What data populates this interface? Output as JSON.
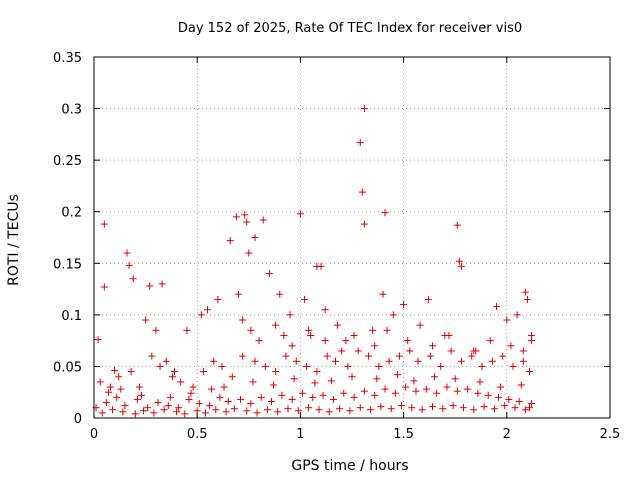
{
  "chart_data": {
    "type": "scatter",
    "title": "Day 152 of 2025, Rate Of TEC Index for receiver vis0",
    "xlabel": "GPS time / hours",
    "ylabel": "ROTI / TECUs",
    "xlim": [
      0,
      2.5
    ],
    "ylim": [
      0,
      0.35
    ],
    "grid": true,
    "marker": "+",
    "color": "#e00000",
    "x_ticks": [
      {
        "value": 0,
        "label": "0"
      },
      {
        "value": 0.5,
        "label": "0.5"
      },
      {
        "value": 1,
        "label": "1"
      },
      {
        "value": 1.5,
        "label": "1.5"
      },
      {
        "value": 2,
        "label": "2"
      },
      {
        "value": 2.5,
        "label": "2.5"
      }
    ],
    "y_ticks": [
      {
        "value": 0,
        "label": "0"
      },
      {
        "value": 0.05,
        "label": "0.05"
      },
      {
        "value": 0.1,
        "label": "0.1"
      },
      {
        "value": 0.15,
        "label": "0.15"
      },
      {
        "value": 0.2,
        "label": "0.2"
      },
      {
        "value": 0.25,
        "label": "0.25"
      },
      {
        "value": 0.3,
        "label": "0.3"
      },
      {
        "value": 0.35,
        "label": "0.35"
      }
    ],
    "series": [
      {
        "name": "ROTI",
        "x": [
          0.05,
          0.27,
          0.33,
          0.69,
          0.73,
          0.74,
          0.78,
          0.82,
          1.0,
          1.08,
          1.1,
          1.29,
          1.3,
          1.31,
          1.31,
          1.41,
          1.76,
          1.77,
          1.78,
          2.09,
          0.02,
          0.05,
          0.1,
          0.16,
          0.17,
          0.19,
          0.25,
          0.3,
          0.35,
          0.39,
          0.45,
          0.52,
          0.55,
          0.6,
          0.66,
          0.7,
          0.75,
          0.85,
          0.9,
          0.95,
          1.02,
          1.05,
          1.12,
          1.18,
          1.22,
          1.35,
          1.4,
          1.45,
          1.5,
          1.58,
          1.62,
          1.7,
          1.85,
          1.95,
          2.0,
          2.05,
          2.1,
          2.12,
          0.03,
          0.08,
          0.12,
          0.18,
          0.22,
          0.28,
          0.32,
          0.38,
          0.42,
          0.48,
          0.53,
          0.58,
          0.62,
          0.67,
          0.72,
          0.78,
          0.83,
          0.88,
          0.93,
          0.98,
          1.03,
          1.08,
          1.13,
          1.17,
          1.23,
          1.28,
          1.33,
          1.38,
          1.43,
          1.48,
          1.53,
          1.57,
          1.63,
          1.68,
          1.73,
          1.78,
          1.83,
          1.88,
          1.93,
          1.98,
          2.03,
          2.08,
          2.11,
          0.01,
          0.06,
          0.11,
          0.15,
          0.21,
          0.26,
          0.31,
          0.36,
          0.41,
          0.46,
          0.51,
          0.56,
          0.61,
          0.65,
          0.71,
          0.76,
          0.81,
          0.86,
          0.91,
          0.96,
          1.01,
          1.06,
          1.11,
          1.16,
          1.21,
          1.26,
          1.31,
          1.36,
          1.41,
          1.46,
          1.51,
          1.56,
          1.61,
          1.66,
          1.71,
          1.76,
          1.81,
          1.86,
          1.91,
          1.96,
          2.01,
          2.06,
          2.12,
          0.04,
          0.09,
          0.14,
          0.2,
          0.24,
          0.29,
          0.34,
          0.4,
          0.44,
          0.5,
          0.54,
          0.59,
          0.64,
          0.68,
          0.74,
          0.79,
          0.84,
          0.89,
          0.94,
          0.99,
          1.04,
          1.09,
          1.14,
          1.19,
          1.24,
          1.29,
          1.34,
          1.39,
          1.44,
          1.49,
          1.54,
          1.59,
          1.64,
          1.69,
          1.74,
          1.79,
          1.84,
          1.89,
          1.94,
          1.99,
          2.04,
          2.09,
          2.11,
          0.07,
          0.13,
          0.23,
          0.37,
          0.47,
          0.57,
          0.63,
          0.77,
          0.87,
          0.97,
          1.07,
          1.15,
          1.25,
          1.37,
          1.47,
          1.55,
          1.65,
          1.75,
          1.87,
          1.97,
          2.07,
          0.72,
          0.76,
          0.8,
          0.88,
          0.92,
          0.96,
          1.04,
          1.12,
          1.2,
          1.26,
          1.36,
          1.42,
          1.52,
          1.64,
          1.72,
          1.84,
          1.92,
          2.02,
          2.08,
          2.12
        ],
        "y": [
          0.188,
          0.128,
          0.13,
          0.195,
          0.197,
          0.19,
          0.175,
          0.192,
          0.198,
          0.147,
          0.147,
          0.267,
          0.219,
          0.3,
          0.188,
          0.199,
          0.187,
          0.152,
          0.147,
          0.122,
          0.076,
          0.127,
          0.046,
          0.16,
          0.148,
          0.135,
          0.095,
          0.085,
          0.055,
          0.045,
          0.085,
          0.1,
          0.105,
          0.115,
          0.172,
          0.12,
          0.16,
          0.14,
          0.12,
          0.1,
          0.115,
          0.08,
          0.105,
          0.09,
          0.075,
          0.085,
          0.12,
          0.1,
          0.11,
          0.09,
          0.115,
          0.08,
          0.065,
          0.108,
          0.095,
          0.1,
          0.115,
          0.075,
          0.035,
          0.03,
          0.04,
          0.045,
          0.03,
          0.06,
          0.05,
          0.04,
          0.035,
          0.03,
          0.045,
          0.055,
          0.05,
          0.04,
          0.06,
          0.055,
          0.05,
          0.045,
          0.06,
          0.055,
          0.05,
          0.045,
          0.06,
          0.055,
          0.05,
          0.065,
          0.06,
          0.05,
          0.055,
          0.06,
          0.065,
          0.055,
          0.06,
          0.05,
          0.065,
          0.055,
          0.06,
          0.05,
          0.055,
          0.06,
          0.05,
          0.055,
          0.045,
          0.01,
          0.015,
          0.02,
          0.012,
          0.018,
          0.01,
          0.015,
          0.012,
          0.01,
          0.018,
          0.014,
          0.012,
          0.02,
          0.016,
          0.018,
          0.014,
          0.02,
          0.016,
          0.022,
          0.018,
          0.024,
          0.02,
          0.022,
          0.018,
          0.024,
          0.02,
          0.026,
          0.022,
          0.028,
          0.024,
          0.03,
          0.026,
          0.028,
          0.024,
          0.03,
          0.026,
          0.028,
          0.024,
          0.022,
          0.02,
          0.018,
          0.016,
          0.014,
          0.005,
          0.008,
          0.006,
          0.004,
          0.007,
          0.005,
          0.008,
          0.006,
          0.004,
          0.007,
          0.005,
          0.008,
          0.006,
          0.009,
          0.007,
          0.005,
          0.008,
          0.006,
          0.009,
          0.007,
          0.01,
          0.008,
          0.006,
          0.009,
          0.007,
          0.01,
          0.008,
          0.011,
          0.009,
          0.012,
          0.01,
          0.008,
          0.011,
          0.009,
          0.012,
          0.01,
          0.008,
          0.011,
          0.009,
          0.012,
          0.01,
          0.008,
          0.01,
          0.025,
          0.028,
          0.022,
          0.02,
          0.024,
          0.028,
          0.03,
          0.035,
          0.032,
          0.038,
          0.034,
          0.036,
          0.04,
          0.038,
          0.042,
          0.036,
          0.04,
          0.038,
          0.035,
          0.03,
          0.032,
          0.095,
          0.085,
          0.075,
          0.09,
          0.08,
          0.07,
          0.085,
          0.075,
          0.065,
          0.08,
          0.07,
          0.085,
          0.075,
          0.07,
          0.08,
          0.065,
          0.075,
          0.07,
          0.065,
          0.08
        ]
      }
    ]
  }
}
